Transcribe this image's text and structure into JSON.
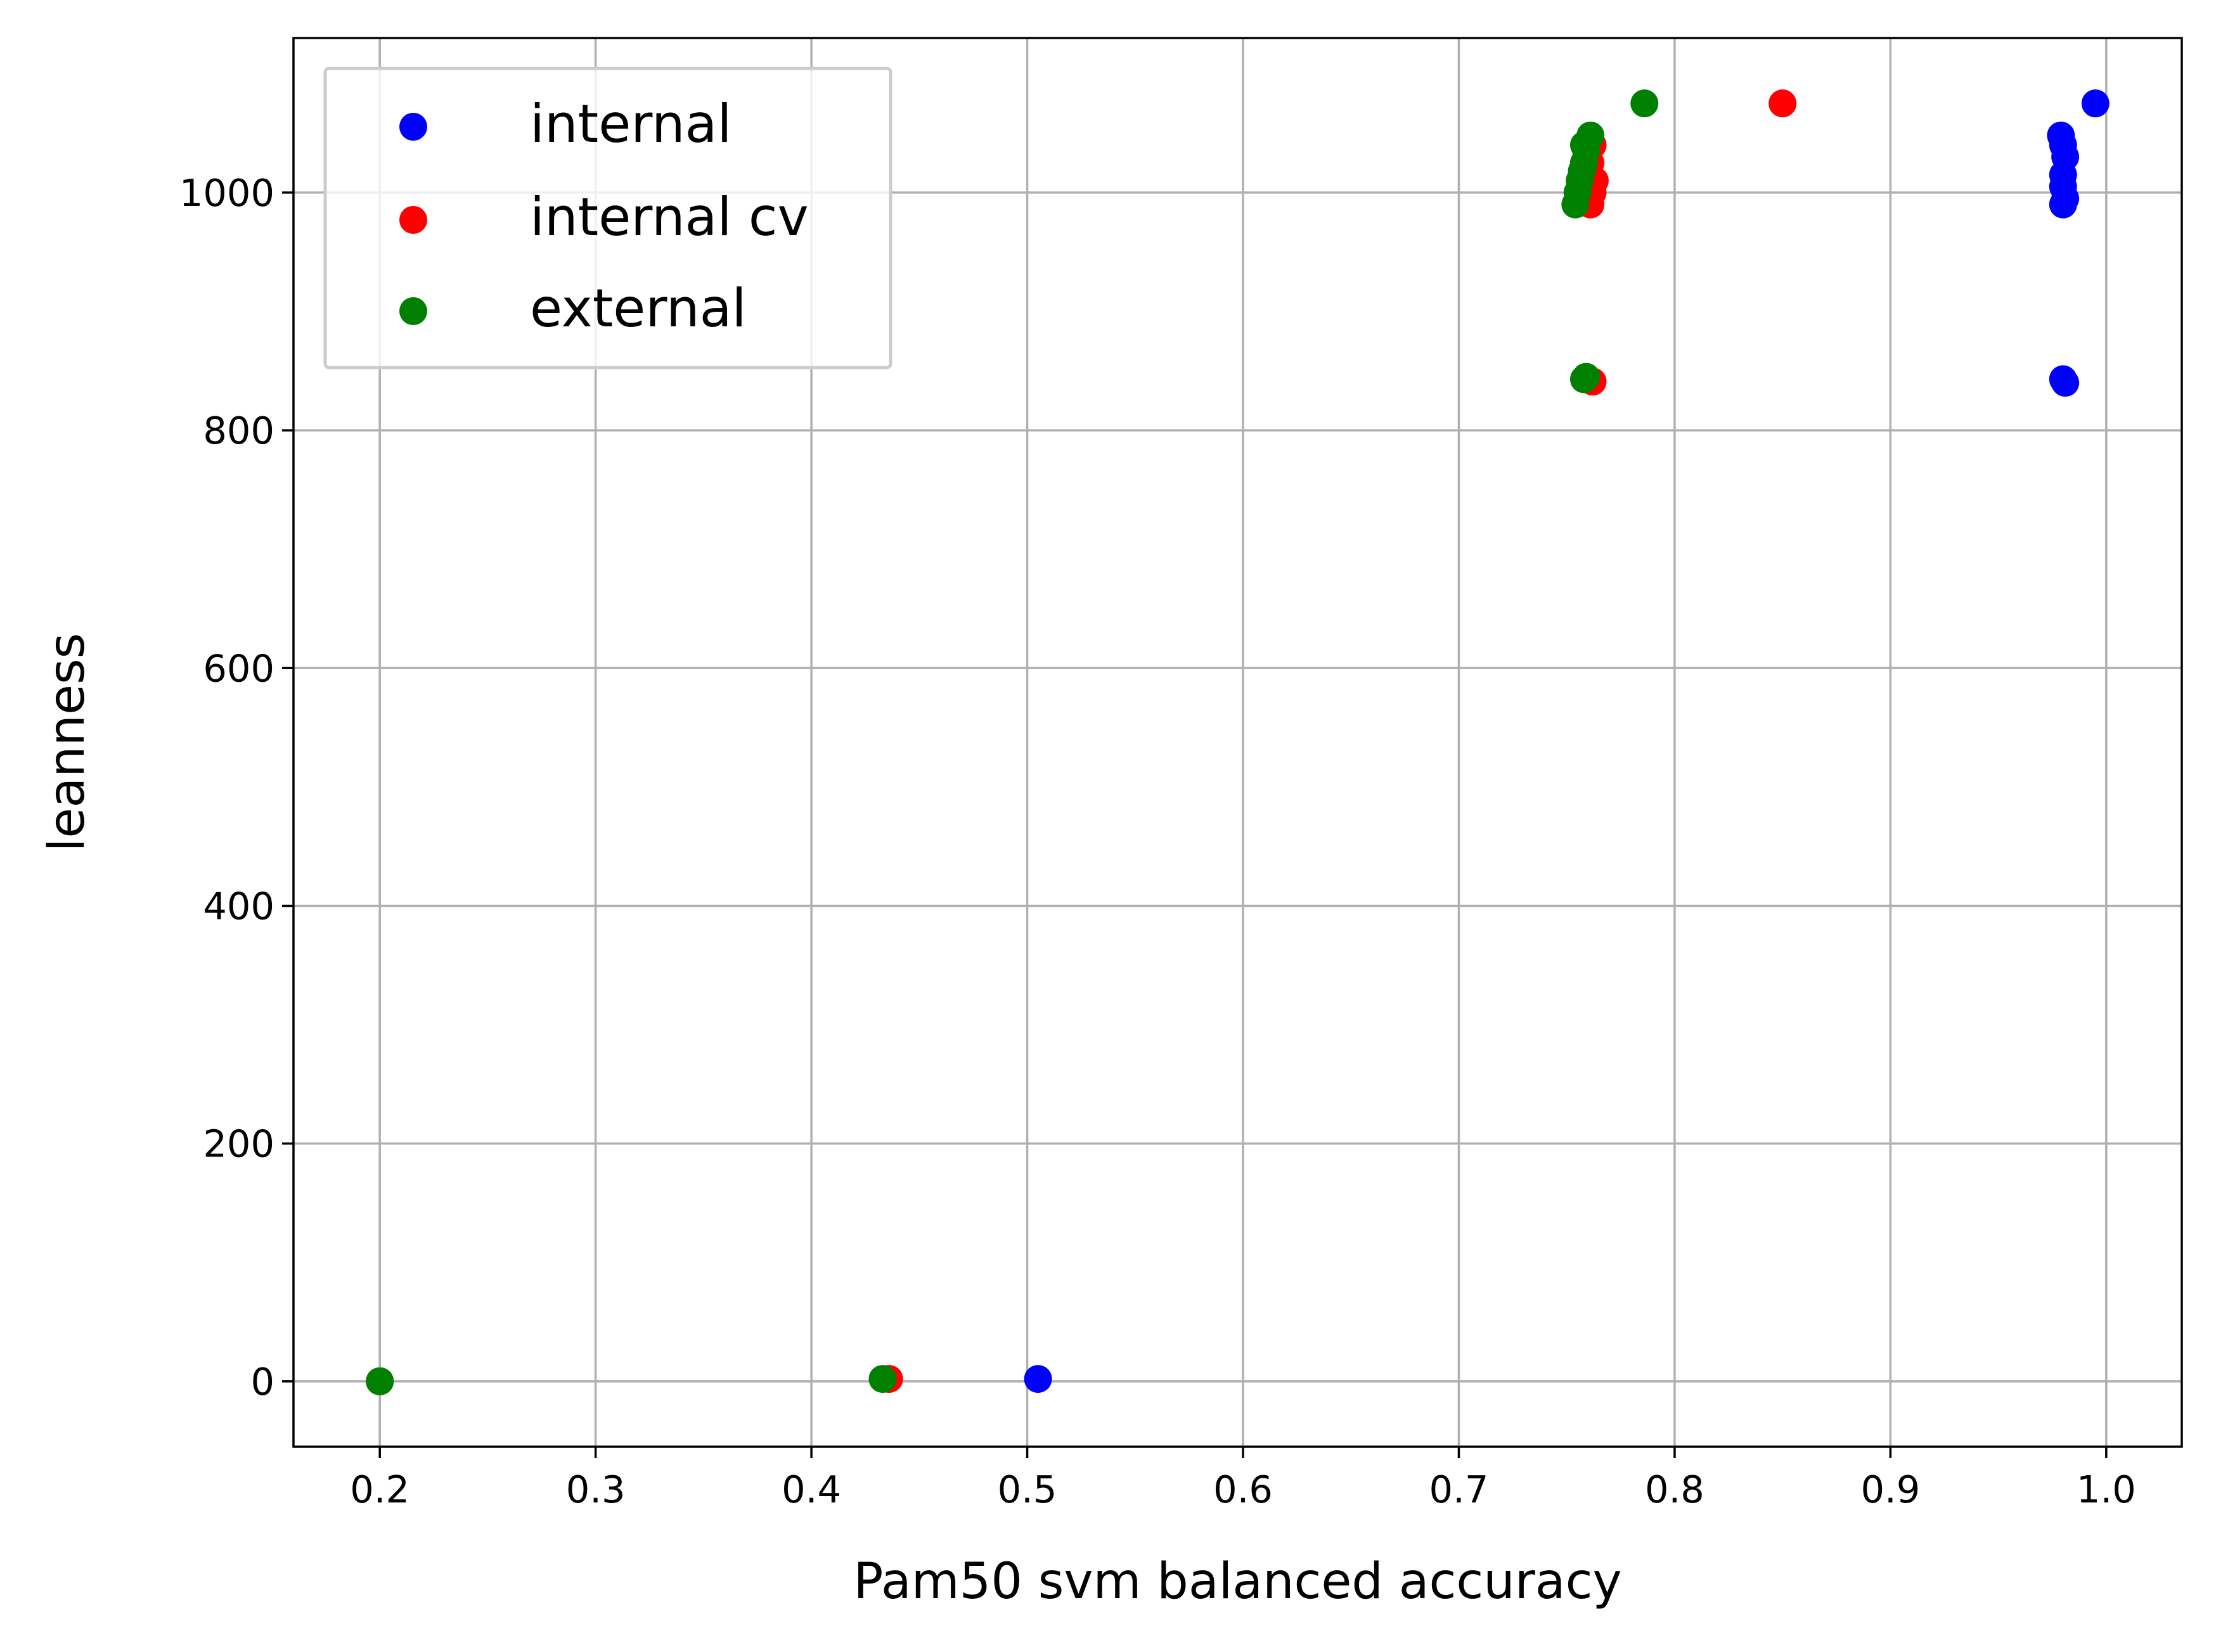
{
  "chart_data": {
    "type": "scatter",
    "title": "",
    "xlabel": "Pam50 svm balanced accuracy",
    "ylabel": "leanness",
    "xlim": [
      0.16,
      1.035
    ],
    "ylim": [
      -55,
      1130
    ],
    "xticks": [
      0.2,
      0.3,
      0.4,
      0.5,
      0.6,
      0.7,
      0.8,
      0.9,
      1.0
    ],
    "xtick_labels": [
      "0.2",
      "0.3",
      "0.4",
      "0.5",
      "0.6",
      "0.7",
      "0.8",
      "0.9",
      "1.0"
    ],
    "yticks": [
      0,
      200,
      400,
      600,
      800,
      1000
    ],
    "ytick_labels": [
      "0",
      "200",
      "400",
      "600",
      "800",
      "1000"
    ],
    "grid": true,
    "legend_position": "upper-left",
    "series": [
      {
        "name": "internal",
        "color": "#0000ff",
        "points": [
          [
            0.2,
            0
          ],
          [
            0.505,
            2
          ],
          [
            0.98,
            843
          ],
          [
            0.981,
            840
          ],
          [
            0.979,
            1048
          ],
          [
            0.98,
            1040
          ],
          [
            0.981,
            1030
          ],
          [
            0.98,
            1015
          ],
          [
            0.98,
            1005
          ],
          [
            0.981,
            995
          ],
          [
            0.98,
            990
          ],
          [
            0.995,
            1075
          ]
        ]
      },
      {
        "name": "internal cv",
        "color": "#ff0000",
        "points": [
          [
            0.2,
            0
          ],
          [
            0.436,
            2
          ],
          [
            0.762,
            841
          ],
          [
            0.761,
            990
          ],
          [
            0.762,
            1000
          ],
          [
            0.763,
            1010
          ],
          [
            0.761,
            1025
          ],
          [
            0.762,
            1040
          ],
          [
            0.85,
            1075
          ]
        ]
      },
      {
        "name": "external",
        "color": "#008000",
        "points": [
          [
            0.2,
            0
          ],
          [
            0.433,
            2
          ],
          [
            0.758,
            843
          ],
          [
            0.759,
            845
          ],
          [
            0.754,
            990
          ],
          [
            0.755,
            1000
          ],
          [
            0.756,
            1010
          ],
          [
            0.757,
            1018
          ],
          [
            0.758,
            1025
          ],
          [
            0.758,
            1040
          ],
          [
            0.759,
            1035
          ],
          [
            0.761,
            1048
          ],
          [
            0.786,
            1075
          ]
        ]
      }
    ]
  }
}
